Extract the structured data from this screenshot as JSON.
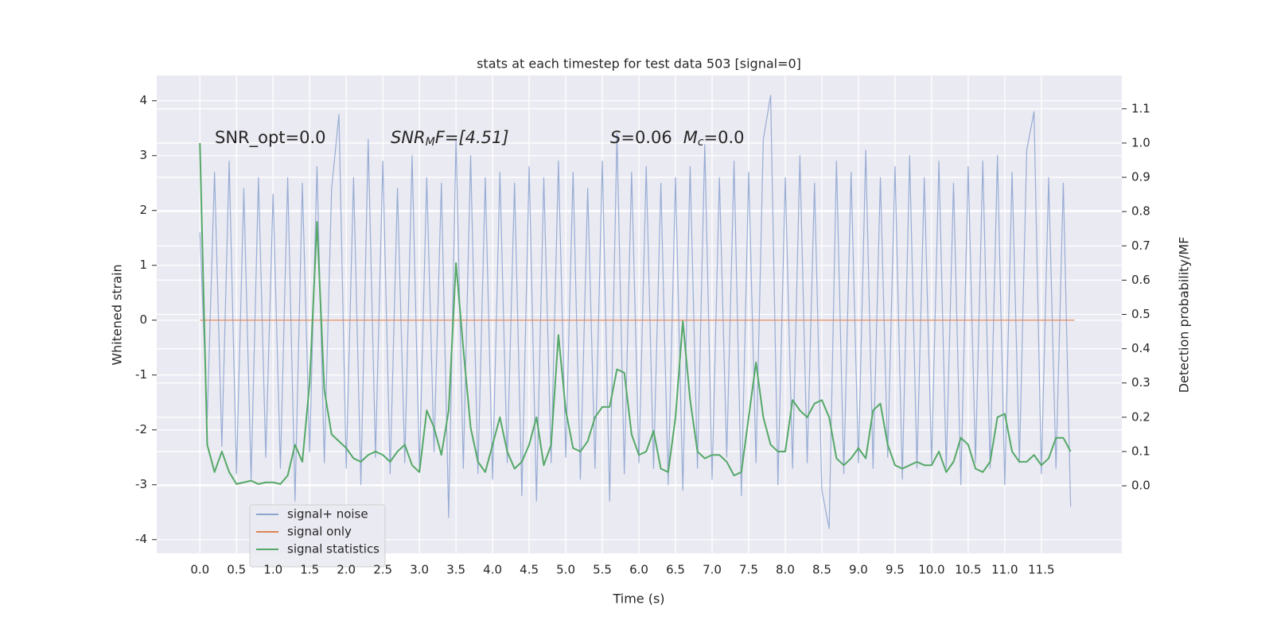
{
  "chart_data": {
    "type": "line",
    "title": "stats at each timestep for test data 503 [signal=0]",
    "xlabel": "Time (s)",
    "ylabel": "Whitened strain",
    "y2label": "Detection probability/MF",
    "annotations": [
      [
        "SNR_opt=0.0"
      ],
      [
        "SNR",
        "M",
        "F=[4.51]"
      ],
      [
        "S",
        "=0.06",
        "M",
        "c",
        "=0.0"
      ]
    ],
    "xlim": [
      -0.59,
      12.6
    ],
    "ylim": [
      -4.25,
      4.46
    ],
    "y2lim": [
      -0.197,
      1.197
    ],
    "xticks": [
      {
        "value": 0,
        "label": "0.0"
      },
      0.5,
      {
        "value": 1,
        "label": "1.0"
      },
      1.5,
      {
        "value": 2,
        "label": "2.0"
      },
      2.5,
      {
        "value": 3,
        "label": "3.0"
      },
      3.5,
      {
        "value": 4,
        "label": "4.0"
      },
      4.5,
      {
        "value": 5,
        "label": "5.0"
      },
      5.5,
      {
        "value": 6,
        "label": "6.0"
      },
      6.5,
      {
        "value": 7,
        "label": "7.0"
      },
      7.5,
      {
        "value": 8,
        "label": "8.0"
      },
      8.5,
      {
        "value": 9,
        "label": "9.0"
      },
      9.5,
      {
        "value": 10,
        "label": "10.0"
      },
      10.5,
      {
        "value": 11,
        "label": "11.0"
      },
      11.5
    ],
    "yticks": [
      -4,
      -3,
      -2,
      -1,
      0,
      1,
      2,
      3,
      4
    ],
    "y2ticks": [
      {
        "value": 0,
        "label": "0.0"
      },
      0.1,
      0.2,
      0.3,
      0.4,
      0.5,
      0.6,
      0.7,
      0.8,
      0.9,
      {
        "value": 1,
        "label": "1.0"
      },
      1.1
    ],
    "grid": true,
    "legend": "lower left",
    "x": [
      0,
      0.1,
      0.2,
      0.3,
      0.4,
      0.5,
      0.6,
      0.7,
      0.8,
      0.9,
      1,
      1.1,
      1.2,
      1.3,
      1.4,
      1.5,
      1.6,
      1.7,
      1.8,
      1.9,
      2,
      2.1,
      2.2,
      2.3,
      2.4,
      2.5,
      2.6,
      2.7,
      2.8,
      2.9,
      3,
      3.1,
      3.2,
      3.3,
      3.4,
      3.5,
      3.6,
      3.7,
      3.8,
      3.9,
      4,
      4.1,
      4.2,
      4.3,
      4.4,
      4.5,
      4.6,
      4.7,
      4.8,
      4.9,
      5,
      5.1,
      5.2,
      5.3,
      5.4,
      5.5,
      5.6,
      5.7,
      5.8,
      5.9,
      6,
      6.1,
      6.2,
      6.3,
      6.4,
      6.5,
      6.6,
      6.7,
      6.8,
      6.9,
      7,
      7.1,
      7.2,
      7.3,
      7.4,
      7.5,
      7.6,
      7.7,
      7.8,
      7.9,
      8,
      8.1,
      8.2,
      8.3,
      8.4,
      8.5,
      8.6,
      8.7,
      8.8,
      8.9,
      9,
      9.1,
      9.2,
      9.3,
      9.4,
      9.5,
      9.6,
      9.7,
      9.8,
      9.9,
      10,
      10.1,
      10.2,
      10.3,
      10.4,
      10.5,
      10.6,
      10.7,
      10.8,
      10.9,
      11,
      11.1,
      11.2,
      11.3,
      11.4,
      11.5,
      11.6,
      11.7,
      11.8,
      11.9
    ],
    "series": [
      {
        "name": "signal+ noise",
        "color": "#8fa5d0",
        "values": [
          1.6,
          -1.8,
          2.7,
          -2.3,
          2.9,
          -2.8,
          2.4,
          -2.9,
          2.6,
          -2.5,
          2.3,
          -2.7,
          2.6,
          -3.3,
          2.5,
          -2.4,
          2.8,
          -2.6,
          2.4,
          3.75,
          -2.7,
          2.6,
          -3.0,
          3.3,
          -2.5,
          2.9,
          -2.8,
          2.4,
          -2.6,
          3.0,
          -2.7,
          2.6,
          -2.4,
          2.5,
          -3.6,
          3.3,
          -2.7,
          3.0,
          -2.8,
          2.6,
          -2.9,
          2.7,
          -2.6,
          2.5,
          -3.2,
          2.8,
          -3.3,
          2.6,
          -2.6,
          2.9,
          -2.5,
          2.7,
          -2.9,
          2.4,
          -2.7,
          2.9,
          -3.3,
          3.4,
          -2.8,
          2.7,
          -2.6,
          2.8,
          -2.7,
          2.5,
          -3.0,
          2.6,
          -3.1,
          2.8,
          -2.7,
          3.2,
          -2.9,
          2.6,
          -2.5,
          2.9,
          -3.2,
          2.7,
          -2.6,
          3.3,
          4.1,
          -3.0,
          2.6,
          -2.7,
          3.0,
          -2.6,
          2.5,
          -3.1,
          -3.8,
          2.9,
          -2.8,
          2.7,
          -2.6,
          3.1,
          -2.7,
          2.6,
          -2.5,
          2.8,
          -2.9,
          3.0,
          -2.7,
          2.6,
          -2.6,
          2.9,
          -2.7,
          2.5,
          -3.0,
          2.8,
          -2.6,
          2.9,
          -2.7,
          3.0,
          -3.0,
          2.7,
          -2.6,
          3.1,
          3.8,
          -2.8,
          2.6,
          -2.7,
          2.5,
          -3.4
        ]
      },
      {
        "name": "signal only",
        "color": "#dd8452",
        "x": [
          0,
          11.95
        ],
        "values": [
          0,
          0
        ]
      },
      {
        "name": "signal statistics",
        "color": "#55a868",
        "axis": "y2",
        "values": [
          1.0,
          0.12,
          0.04,
          0.1,
          0.04,
          0.005,
          0.01,
          0.015,
          0.005,
          0.01,
          0.01,
          0.005,
          0.03,
          0.12,
          0.07,
          0.3,
          0.77,
          0.28,
          0.15,
          0.13,
          0.11,
          0.08,
          0.07,
          0.09,
          0.1,
          0.09,
          0.07,
          0.1,
          0.12,
          0.06,
          0.04,
          0.22,
          0.17,
          0.09,
          0.22,
          0.65,
          0.4,
          0.17,
          0.07,
          0.04,
          0.12,
          0.2,
          0.1,
          0.05,
          0.07,
          0.12,
          0.2,
          0.06,
          0.12,
          0.44,
          0.22,
          0.11,
          0.1,
          0.13,
          0.2,
          0.23,
          0.23,
          0.34,
          0.33,
          0.15,
          0.09,
          0.1,
          0.16,
          0.05,
          0.04,
          0.2,
          0.48,
          0.25,
          0.1,
          0.08,
          0.09,
          0.09,
          0.07,
          0.03,
          0.04,
          0.2,
          0.36,
          0.2,
          0.12,
          0.1,
          0.1,
          0.25,
          0.22,
          0.2,
          0.24,
          0.25,
          0.2,
          0.08,
          0.06,
          0.08,
          0.11,
          0.08,
          0.22,
          0.24,
          0.12,
          0.06,
          0.05,
          0.06,
          0.07,
          0.06,
          0.06,
          0.1,
          0.04,
          0.07,
          0.14,
          0.12,
          0.05,
          0.04,
          0.07,
          0.2,
          0.21,
          0.1,
          0.07,
          0.07,
          0.09,
          0.06,
          0.08,
          0.14,
          0.14,
          0.1
        ]
      }
    ]
  }
}
